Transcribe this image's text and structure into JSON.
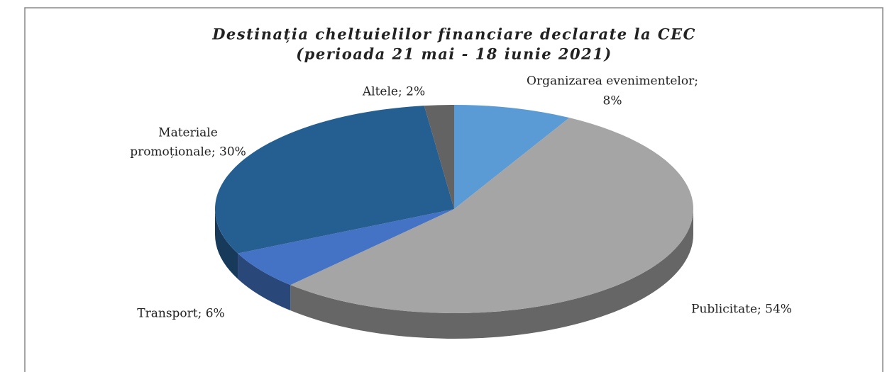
{
  "chart_data": {
    "type": "pie",
    "title": [
      "Destinația cheltuielilor financiare declarate la CEC",
      "(perioada 21 mai - 18 iunie 2021)"
    ],
    "labels": [
      [
        "Organizarea evenimentelor;",
        "8%"
      ],
      [
        "Publicitate; 54%"
      ],
      [
        "Transport; 6%"
      ],
      [
        "Materiale",
        "promoționale; 30%"
      ],
      [
        "Altele; 2%"
      ]
    ],
    "values": [
      8,
      54,
      6,
      30,
      2
    ],
    "colors": [
      "#5b9bd5",
      "#a5a5a5",
      "#4472c4",
      "#255e91",
      "#636363"
    ]
  }
}
